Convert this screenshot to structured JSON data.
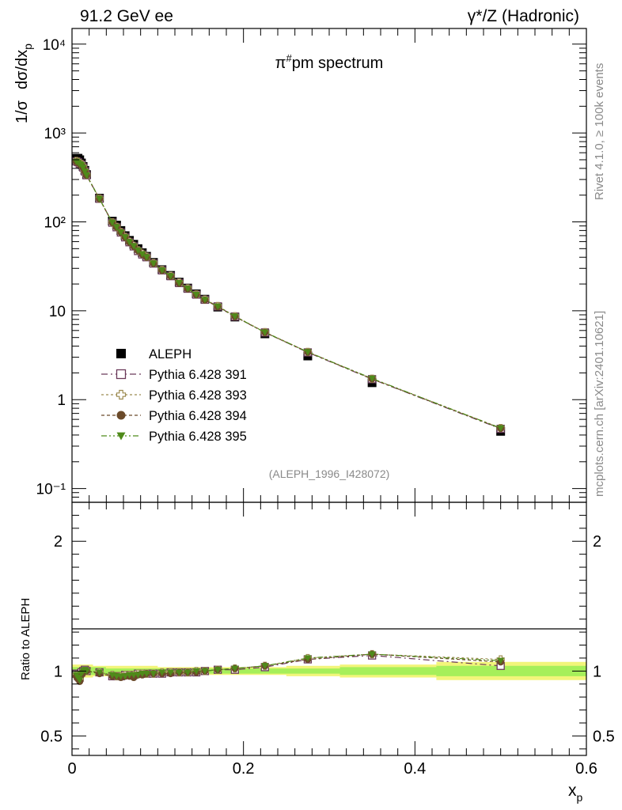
{
  "header": {
    "left": "91.2 GeV ee",
    "right": "γ*/Z (Hadronic)"
  },
  "side_labels": {
    "rivet": "Rivet 4.1.0, ≥ 100k events",
    "mcplots": "mcplots.cern.ch [arXiv:2401.10621]"
  },
  "colors": {
    "data": "#000000",
    "p391": "#6b3a5a",
    "p393": "#9c8a50",
    "p394": "#6b4a2a",
    "p395": "#4f8a1a",
    "band_inner": "#a6ef5a",
    "band_outer": "#f2f57a"
  },
  "legend": [
    {
      "key": "data",
      "label": "ALEPH"
    },
    {
      "key": "p391",
      "label": "Pythia 6.428 391"
    },
    {
      "key": "p393",
      "label": "Pythia 6.428 393"
    },
    {
      "key": "p394",
      "label": "Pythia 6.428 394"
    },
    {
      "key": "p395",
      "label": "Pythia 6.428 395"
    }
  ],
  "chart_data": [
    {
      "type": "scatter",
      "title": "π#pm spectrum",
      "ylabel_parts": [
        "1/σ",
        "dσ/dx",
        "p"
      ],
      "yscale": "log",
      "ylim": [
        0.07,
        15000
      ],
      "xlim": [
        0,
        0.6
      ],
      "ytick_labels": [
        "10⁻¹",
        "1",
        "10",
        "10²",
        "10³",
        "10⁴"
      ],
      "ytick_values": [
        0.1,
        1,
        10,
        100,
        1000,
        10000
      ],
      "watermark": "(ALEPH_1996_I428072)",
      "x": [
        0.005,
        0.007,
        0.009,
        0.011,
        0.013,
        0.015,
        0.017,
        0.032,
        0.047,
        0.052,
        0.057,
        0.062,
        0.067,
        0.072,
        0.077,
        0.082,
        0.087,
        0.095,
        0.105,
        0.115,
        0.125,
        0.135,
        0.145,
        0.155,
        0.17,
        0.19,
        0.225,
        0.275,
        0.35,
        0.5
      ],
      "series": [
        {
          "name": "ALEPH",
          "key": "data",
          "values": [
            520,
            520,
            500,
            460,
            420,
            380,
            340,
            185,
            102,
            92,
            80,
            70,
            62,
            56,
            50,
            45,
            41,
            35,
            29,
            25,
            21,
            18,
            15.5,
            13.5,
            11,
            8.5,
            5.5,
            3.1,
            1.55,
            0.44
          ],
          "ratio_band_inner": [
            0.03,
            0.03,
            0.03,
            0.03,
            0.03,
            0.03,
            0.03,
            0.03,
            0.02,
            0.02,
            0.02,
            0.02,
            0.02,
            0.02,
            0.02,
            0.02,
            0.02,
            0.02,
            0.02,
            0.02,
            0.02,
            0.02,
            0.02,
            0.02,
            0.02,
            0.02,
            0.02,
            0.02,
            0.03,
            0.04
          ],
          "ratio_band_outer": [
            0.05,
            0.05,
            0.05,
            0.05,
            0.05,
            0.05,
            0.05,
            0.04,
            0.04,
            0.04,
            0.04,
            0.04,
            0.04,
            0.04,
            0.04,
            0.04,
            0.04,
            0.04,
            0.03,
            0.03,
            0.03,
            0.03,
            0.03,
            0.03,
            0.03,
            0.03,
            0.03,
            0.04,
            0.05,
            0.07
          ]
        },
        {
          "name": "Pythia 6.428 391",
          "key": "p391",
          "marker": "open-square",
          "dash": "8,4,2,4",
          "values": [
            480,
            470,
            450,
            440,
            410,
            370,
            335,
            182,
            98,
            87,
            76,
            67,
            59,
            53,
            47,
            43,
            40,
            34,
            28.5,
            24.5,
            20.5,
            17.7,
            15.2,
            13.3,
            11.2,
            8.6,
            5.7,
            3.4,
            1.7,
            0.47
          ],
          "ratio": [
            0.98,
            0.96,
            0.95,
            0.99,
            1.0,
            1.01,
            1.0,
            0.99,
            0.96,
            0.96,
            0.96,
            0.97,
            0.97,
            0.97,
            0.98,
            0.98,
            0.98,
            0.98,
            0.98,
            0.99,
            0.99,
            0.99,
            0.99,
            1.0,
            1.01,
            1.01,
            1.03,
            1.09,
            1.12,
            1.04
          ]
        },
        {
          "name": "Pythia 6.428 393",
          "key": "p393",
          "marker": "open-cross",
          "dash": "3,3",
          "values": [
            485,
            475,
            455,
            445,
            415,
            372,
            338,
            183,
            99,
            88,
            77,
            68,
            60,
            54,
            48,
            44,
            40.5,
            34.5,
            28.8,
            24.8,
            20.8,
            17.9,
            15.3,
            13.4,
            11.3,
            8.7,
            5.75,
            3.45,
            1.72,
            0.48
          ],
          "ratio": [
            0.97,
            0.95,
            0.94,
            0.98,
            0.99,
            1.0,
            1.0,
            0.99,
            0.97,
            0.96,
            0.96,
            0.97,
            0.97,
            0.97,
            0.98,
            0.98,
            0.98,
            0.98,
            0.99,
            0.99,
            0.99,
            0.99,
            1.0,
            1.0,
            1.01,
            1.02,
            1.04,
            1.1,
            1.13,
            1.09
          ]
        },
        {
          "name": "Pythia 6.428 394",
          "key": "p394",
          "marker": "filled-circle",
          "dash": "4,3",
          "values": [
            475,
            465,
            445,
            435,
            405,
            368,
            333,
            181,
            98,
            87,
            76,
            67,
            59,
            53,
            47.5,
            43,
            40,
            34,
            28.4,
            24.4,
            20.4,
            17.6,
            15.1,
            13.2,
            11.1,
            8.6,
            5.7,
            3.42,
            1.71,
            0.475
          ],
          "ratio": [
            0.96,
            0.94,
            0.92,
            0.97,
            0.99,
            1.0,
            1.0,
            0.98,
            0.96,
            0.96,
            0.95,
            0.96,
            0.96,
            0.95,
            0.97,
            0.97,
            0.98,
            0.98,
            0.98,
            0.98,
            0.99,
            0.99,
            0.99,
            1.0,
            1.01,
            1.02,
            1.04,
            1.09,
            1.13,
            1.07
          ]
        },
        {
          "name": "Pythia 6.428 395",
          "key": "p395",
          "marker": "filled-triangle-down",
          "dash": "7,3,2,3,2,3",
          "values": [
            478,
            468,
            448,
            438,
            408,
            370,
            335,
            182,
            98.5,
            87.5,
            76.5,
            67.5,
            59.5,
            53.5,
            47.8,
            43.5,
            40.2,
            34.2,
            28.6,
            24.6,
            20.6,
            17.8,
            15.2,
            13.3,
            11.2,
            8.65,
            5.72,
            3.44,
            1.73,
            0.478
          ],
          "ratio": [
            0.97,
            0.95,
            0.93,
            0.98,
            1.0,
            1.01,
            1.0,
            0.99,
            0.97,
            0.96,
            0.96,
            0.96,
            0.97,
            0.97,
            0.97,
            0.98,
            0.98,
            0.98,
            0.99,
            0.99,
            0.99,
            0.99,
            1.0,
            1.0,
            1.01,
            1.02,
            1.04,
            1.1,
            1.13,
            1.08
          ]
        }
      ]
    },
    {
      "type": "scatter",
      "title": "",
      "ylabel": "Ratio to ALEPH",
      "xlabel_main": "x",
      "xlabel_sub": "p",
      "ylim": [
        0.35,
        2.3
      ],
      "xlim": [
        0,
        0.6
      ],
      "ytick_values": [
        0.5,
        1,
        2
      ],
      "ytick_labels": [
        "0.5",
        "1",
        "2"
      ],
      "xtick_values": [
        0,
        0.2,
        0.4,
        0.6
      ],
      "xtick_labels": [
        "0",
        "0.2",
        "0.4",
        "0.6"
      ]
    }
  ]
}
